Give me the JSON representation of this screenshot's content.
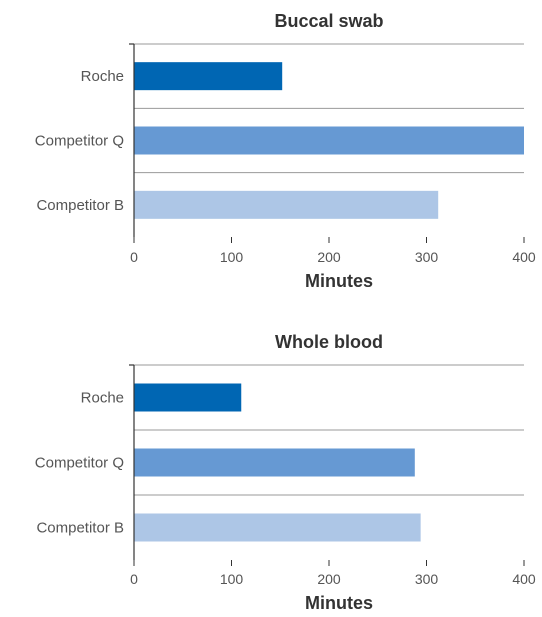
{
  "chart_data": [
    {
      "type": "bar",
      "orientation": "horizontal",
      "title": "Buccal swab",
      "xlabel": "Minutes",
      "ylabel": "",
      "categories": [
        "Roche",
        "Competitor Q",
        "Competitor B"
      ],
      "values": [
        152,
        400,
        312
      ],
      "xlim": [
        0,
        400
      ],
      "xticks": [
        0,
        100,
        200,
        300,
        400
      ],
      "bar_colors": [
        "#0066b3",
        "#6699d3",
        "#adc6e6"
      ],
      "grid": "horizontal separators between categories"
    },
    {
      "type": "bar",
      "orientation": "horizontal",
      "title": "Whole blood",
      "xlabel": "Minutes",
      "ylabel": "",
      "categories": [
        "Roche",
        "Competitor Q",
        "Competitor B"
      ],
      "values": [
        110,
        288,
        294
      ],
      "xlim": [
        0,
        400
      ],
      "xticks": [
        0,
        100,
        200,
        300,
        400
      ],
      "bar_colors": [
        "#0066b3",
        "#6699d3",
        "#adc6e6"
      ],
      "grid": "horizontal separators between categories"
    }
  ]
}
